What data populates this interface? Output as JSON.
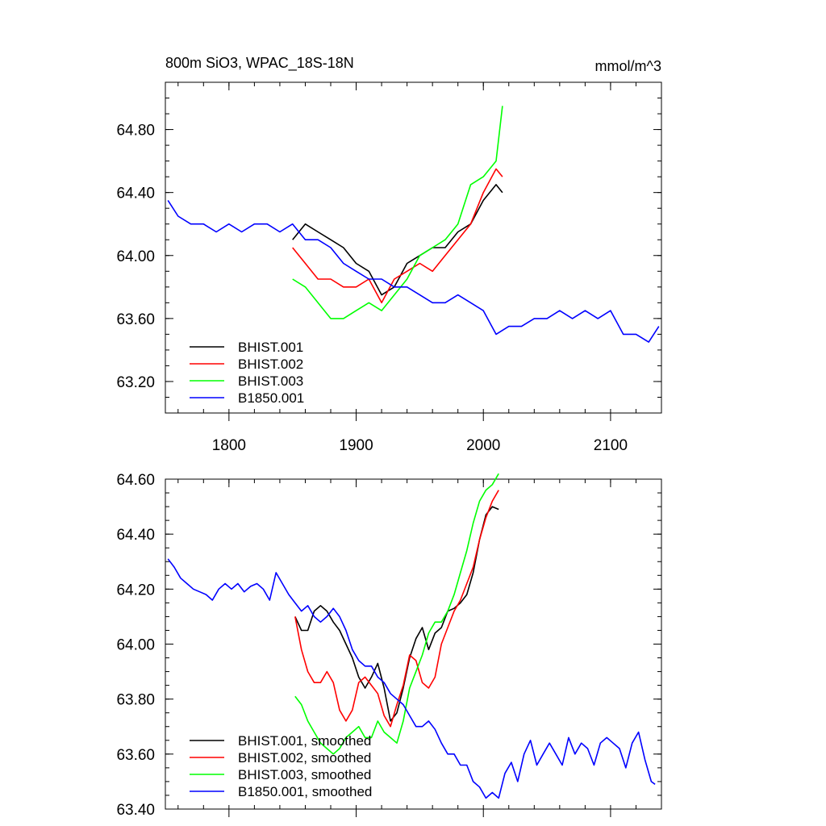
{
  "chart_data": [
    {
      "type": "line",
      "title": "800m SiO3, WPAC_18S-18N",
      "units": "mmol/m^3",
      "xlim": [
        1750,
        2140
      ],
      "ylim": [
        63.0,
        65.1
      ],
      "x_ticks": [
        1800,
        1900,
        2000,
        2100
      ],
      "x_tick_labels": [
        "1800",
        "1900",
        "2000",
        "2100"
      ],
      "y_ticks": [
        63.2,
        63.6,
        64.0,
        64.4,
        64.8
      ],
      "y_tick_labels": [
        "63.20",
        "63.60",
        "64.00",
        "64.40",
        "64.80"
      ],
      "legend_position": "bottom-left",
      "series": [
        {
          "name": "BHIST.001",
          "color": "#000000",
          "x": [
            1850,
            1860,
            1870,
            1880,
            1890,
            1900,
            1910,
            1920,
            1930,
            1940,
            1950,
            1960,
            1970,
            1980,
            1990,
            2000,
            2010,
            2015
          ],
          "y": [
            64.1,
            64.2,
            64.15,
            64.1,
            64.05,
            63.95,
            63.9,
            63.75,
            63.8,
            63.95,
            64.0,
            64.05,
            64.05,
            64.15,
            64.2,
            64.35,
            64.45,
            64.4
          ]
        },
        {
          "name": "BHIST.002",
          "color": "#ff0000",
          "x": [
            1850,
            1860,
            1870,
            1880,
            1890,
            1900,
            1910,
            1920,
            1930,
            1940,
            1950,
            1960,
            1970,
            1980,
            1990,
            2000,
            2010,
            2015
          ],
          "y": [
            64.05,
            63.95,
            63.85,
            63.85,
            63.8,
            63.8,
            63.85,
            63.7,
            63.85,
            63.9,
            63.95,
            63.9,
            64.0,
            64.1,
            64.2,
            64.4,
            64.55,
            64.5
          ]
        },
        {
          "name": "BHIST.003",
          "color": "#00ff00",
          "x": [
            1850,
            1860,
            1870,
            1880,
            1890,
            1900,
            1910,
            1920,
            1930,
            1940,
            1950,
            1960,
            1970,
            1980,
            1990,
            2000,
            2010,
            2015
          ],
          "y": [
            63.85,
            63.8,
            63.7,
            63.6,
            63.6,
            63.65,
            63.7,
            63.65,
            63.75,
            63.85,
            64.0,
            64.05,
            64.1,
            64.2,
            64.45,
            64.5,
            64.6,
            64.95
          ]
        },
        {
          "name": "B1850.001",
          "color": "#0000ff",
          "x": [
            1752,
            1760,
            1770,
            1780,
            1790,
            1800,
            1810,
            1820,
            1830,
            1840,
            1850,
            1860,
            1870,
            1880,
            1890,
            1900,
            1910,
            1920,
            1930,
            1940,
            1950,
            1960,
            1970,
            1980,
            1990,
            2000,
            2010,
            2020,
            2030,
            2040,
            2050,
            2060,
            2070,
            2080,
            2090,
            2100,
            2110,
            2120,
            2130,
            2138
          ],
          "y": [
            64.35,
            64.25,
            64.2,
            64.2,
            64.15,
            64.2,
            64.15,
            64.2,
            64.2,
            64.15,
            64.2,
            64.1,
            64.1,
            64.05,
            63.95,
            63.9,
            63.85,
            63.85,
            63.8,
            63.8,
            63.75,
            63.7,
            63.7,
            63.75,
            63.7,
            63.65,
            63.5,
            63.55,
            63.55,
            63.6,
            63.6,
            63.65,
            63.6,
            63.65,
            63.6,
            63.65,
            63.5,
            63.5,
            63.45,
            63.55
          ]
        }
      ]
    },
    {
      "type": "line",
      "xlim": [
        1750,
        2140
      ],
      "ylim": [
        63.4,
        64.6
      ],
      "x_ticks": [
        1800,
        1900,
        2000,
        2100
      ],
      "y_ticks": [
        63.4,
        63.6,
        63.8,
        64.0,
        64.2,
        64.4,
        64.6
      ],
      "y_tick_labels": [
        "63.40",
        "63.60",
        "63.80",
        "64.00",
        "64.20",
        "64.40",
        "64.60"
      ],
      "legend_position": "bottom-left",
      "series": [
        {
          "name": "BHIST.001, smoothed",
          "color": "#000000",
          "x": [
            1852,
            1857,
            1862,
            1867,
            1872,
            1877,
            1882,
            1887,
            1892,
            1897,
            1902,
            1907,
            1912,
            1917,
            1922,
            1927,
            1932,
            1937,
            1942,
            1947,
            1952,
            1957,
            1962,
            1967,
            1972,
            1977,
            1982,
            1987,
            1992,
            1997,
            2002,
            2007,
            2012
          ],
          "y": [
            64.1,
            64.05,
            64.05,
            64.12,
            64.14,
            64.12,
            64.08,
            64.05,
            64.0,
            63.95,
            63.88,
            63.84,
            63.88,
            63.93,
            63.84,
            63.72,
            63.75,
            63.84,
            63.95,
            64.02,
            64.06,
            63.98,
            64.04,
            64.06,
            64.12,
            64.13,
            64.15,
            64.18,
            64.26,
            64.38,
            64.47,
            64.5,
            64.49
          ]
        },
        {
          "name": "BHIST.002, smoothed",
          "color": "#ff0000",
          "x": [
            1852,
            1857,
            1862,
            1867,
            1872,
            1877,
            1882,
            1887,
            1892,
            1897,
            1902,
            1907,
            1912,
            1917,
            1922,
            1927,
            1932,
            1937,
            1942,
            1947,
            1952,
            1957,
            1962,
            1967,
            1972,
            1977,
            1982,
            1987,
            1992,
            1997,
            2002,
            2007,
            2012
          ],
          "y": [
            64.1,
            63.98,
            63.9,
            63.86,
            63.86,
            63.9,
            63.86,
            63.76,
            63.72,
            63.76,
            63.86,
            63.88,
            63.85,
            63.82,
            63.74,
            63.7,
            63.78,
            63.85,
            63.96,
            63.94,
            63.86,
            63.84,
            63.88,
            64.0,
            64.06,
            64.12,
            64.16,
            64.22,
            64.28,
            64.38,
            64.46,
            64.52,
            64.56
          ]
        },
        {
          "name": "BHIST.003, smoothed",
          "color": "#00ff00",
          "x": [
            1852,
            1857,
            1862,
            1867,
            1872,
            1877,
            1882,
            1887,
            1892,
            1897,
            1902,
            1907,
            1912,
            1917,
            1922,
            1927,
            1932,
            1937,
            1942,
            1947,
            1952,
            1957,
            1962,
            1967,
            1972,
            1977,
            1982,
            1987,
            1992,
            1997,
            2002,
            2007,
            2012
          ],
          "y": [
            63.81,
            63.78,
            63.72,
            63.68,
            63.64,
            63.62,
            63.6,
            63.62,
            63.66,
            63.68,
            63.7,
            63.66,
            63.66,
            63.72,
            63.68,
            63.66,
            63.64,
            63.72,
            63.84,
            63.9,
            63.96,
            64.04,
            64.08,
            64.08,
            64.12,
            64.18,
            64.26,
            64.34,
            64.44,
            64.52,
            64.56,
            64.58,
            64.62
          ]
        },
        {
          "name": "B1850.001, smoothed",
          "color": "#0000ff",
          "x": [
            1752,
            1757,
            1762,
            1767,
            1772,
            1777,
            1782,
            1787,
            1792,
            1797,
            1802,
            1807,
            1812,
            1817,
            1822,
            1827,
            1832,
            1837,
            1842,
            1847,
            1852,
            1857,
            1862,
            1867,
            1872,
            1877,
            1882,
            1887,
            1892,
            1897,
            1902,
            1907,
            1912,
            1917,
            1922,
            1927,
            1932,
            1937,
            1942,
            1947,
            1952,
            1957,
            1962,
            1967,
            1972,
            1977,
            1982,
            1987,
            1992,
            1997,
            2002,
            2007,
            2012,
            2017,
            2022,
            2027,
            2032,
            2037,
            2042,
            2047,
            2052,
            2057,
            2062,
            2067,
            2072,
            2077,
            2082,
            2087,
            2092,
            2097,
            2102,
            2107,
            2112,
            2117,
            2122,
            2127,
            2132,
            2135
          ],
          "y": [
            64.31,
            64.28,
            64.24,
            64.22,
            64.2,
            64.19,
            64.18,
            64.16,
            64.2,
            64.22,
            64.2,
            64.22,
            64.19,
            64.21,
            64.22,
            64.2,
            64.16,
            64.26,
            64.22,
            64.18,
            64.15,
            64.12,
            64.14,
            64.1,
            64.08,
            64.1,
            64.13,
            64.1,
            64.05,
            63.98,
            63.94,
            63.92,
            63.92,
            63.88,
            63.86,
            63.82,
            63.8,
            63.78,
            63.74,
            63.7,
            63.7,
            63.72,
            63.69,
            63.64,
            63.6,
            63.6,
            63.56,
            63.56,
            63.5,
            63.48,
            63.44,
            63.46,
            63.44,
            63.53,
            63.57,
            63.5,
            63.6,
            63.65,
            63.56,
            63.6,
            63.64,
            63.6,
            63.56,
            63.66,
            63.6,
            63.64,
            63.62,
            63.56,
            63.64,
            63.66,
            63.64,
            63.62,
            63.55,
            63.64,
            63.68,
            63.58,
            63.5,
            63.49
          ]
        }
      ]
    }
  ]
}
